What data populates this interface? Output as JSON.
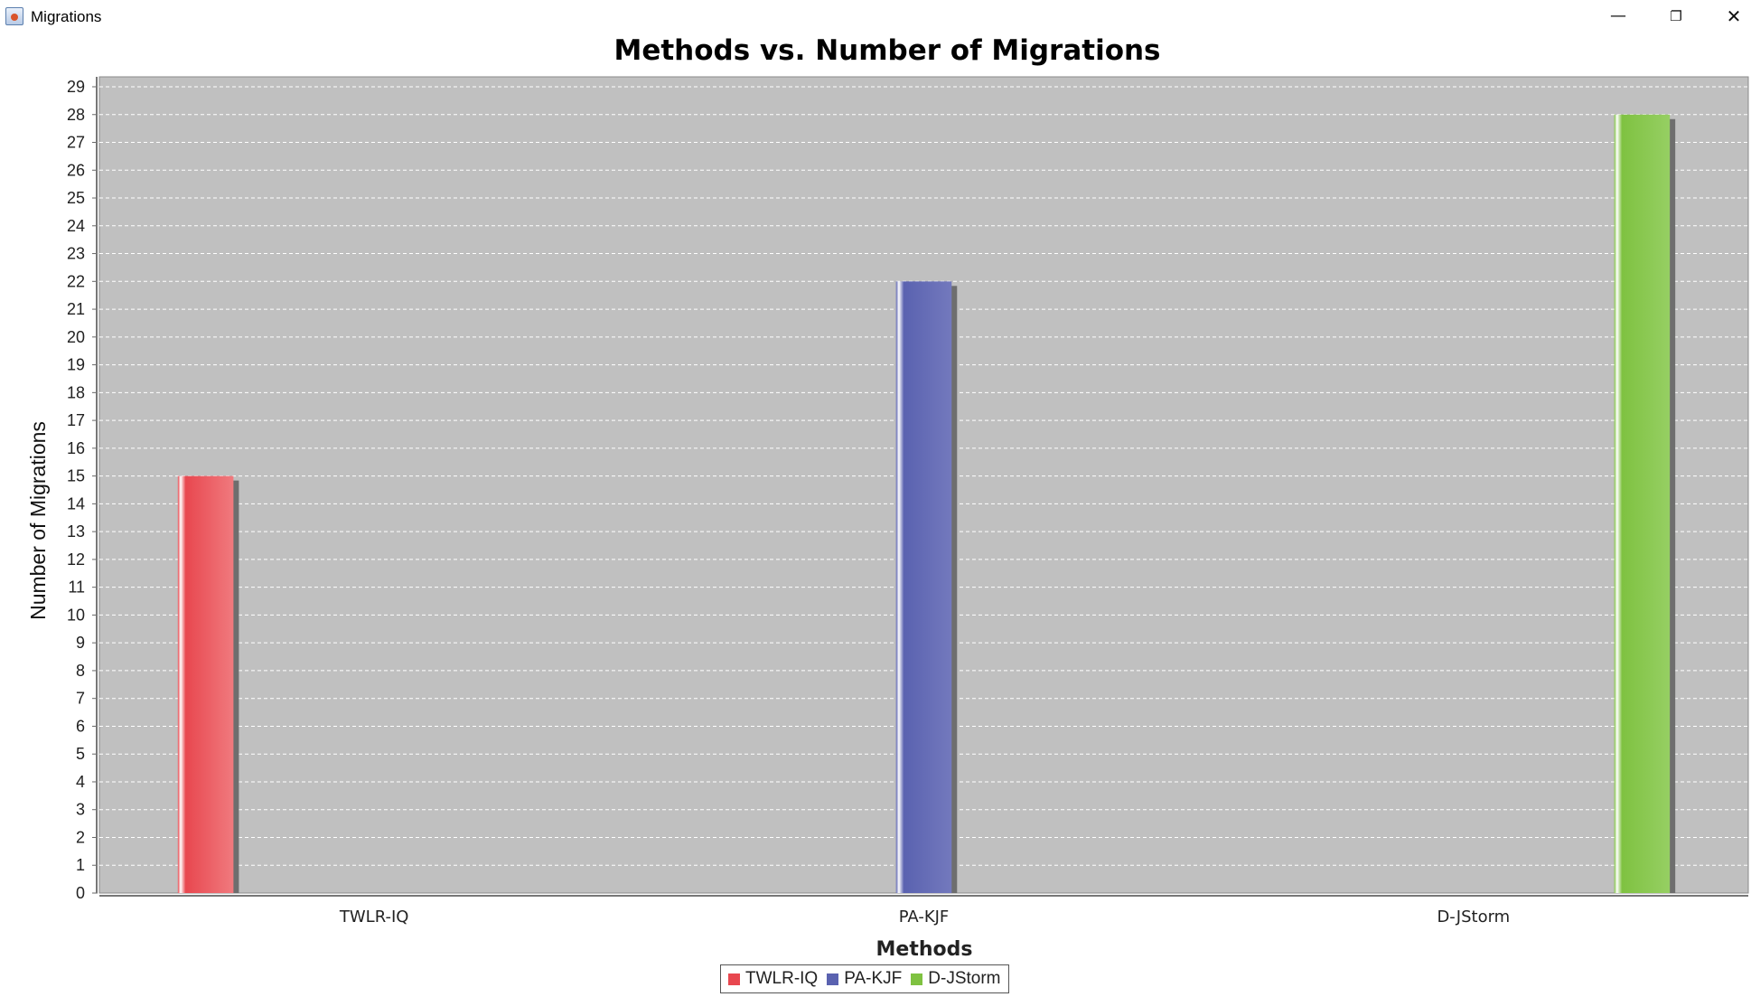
{
  "window": {
    "title": "Migrations",
    "minimize_glyph": "—",
    "maximize_glyph": "❐",
    "close_glyph": "✕"
  },
  "chart_data": {
    "type": "bar",
    "title": "Methods vs. Number of Migrations",
    "xlabel": "Methods",
    "ylabel": "Number of Migrations",
    "categories": [
      "TWLR-IQ",
      "PA-KJF",
      "D-JStorm"
    ],
    "series": [
      {
        "name": "TWLR-IQ",
        "values": [
          15,
          null,
          null
        ],
        "color": "#e8474f"
      },
      {
        "name": "PA-KJF",
        "values": [
          null,
          22,
          null
        ],
        "color": "#5a62b0"
      },
      {
        "name": "D-JStorm",
        "values": [
          null,
          null,
          28
        ],
        "color": "#7fc241"
      }
    ],
    "ylim": [
      0,
      29
    ],
    "yticks": [
      0,
      1,
      2,
      3,
      4,
      5,
      6,
      7,
      8,
      9,
      10,
      11,
      12,
      13,
      14,
      15,
      16,
      17,
      18,
      19,
      20,
      21,
      22,
      23,
      24,
      25,
      26,
      27,
      28,
      29
    ],
    "grid": true,
    "legend": "bottom-center",
    "plot_background": "#c0c0c0"
  }
}
